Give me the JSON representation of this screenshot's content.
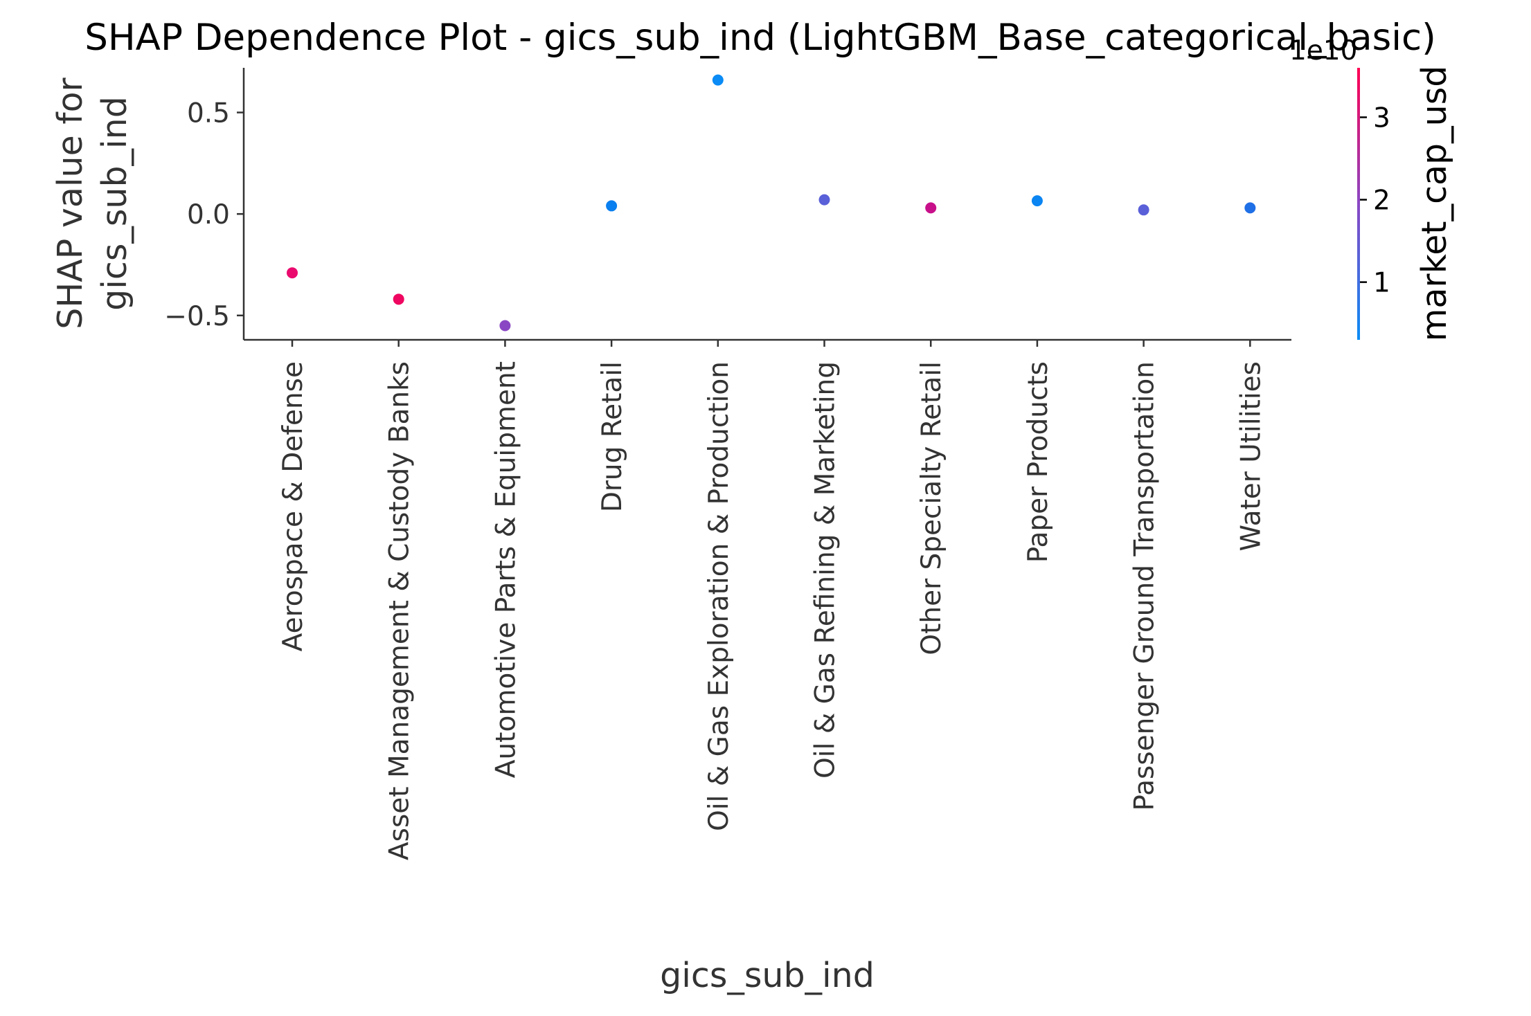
{
  "chart_data": {
    "type": "scatter",
    "title": "SHAP Dependence Plot - gics_sub_ind (LightGBM_Base_categorical_basic)",
    "xlabel": "gics_sub_ind",
    "ylabel_lines": [
      "SHAP value for",
      "gics_sub_ind"
    ],
    "categories": [
      "Aerospace & Defense",
      "Asset Management & Custody Banks",
      "Automotive Parts & Equipment",
      "Drug Retail",
      "Oil & Gas Exploration & Production",
      "Oil & Gas Refining & Marketing",
      "Other Specialty Retail",
      "Paper Products",
      "Passenger Ground Transportation",
      "Water Utilities"
    ],
    "ylim": [
      -0.62,
      0.72
    ],
    "yticks": [
      -0.5,
      0.0,
      0.5
    ],
    "ytick_labels": [
      "−0.5",
      "0.0",
      "0.5"
    ],
    "points": [
      {
        "x": "Aerospace & Defense",
        "y": -0.29,
        "color": "#ea0a6e"
      },
      {
        "x": "Asset Management & Custody Banks",
        "y": -0.42,
        "color": "#ef0660"
      },
      {
        "x": "Automotive Parts & Equipment",
        "y": -0.55,
        "color": "#8a47c4"
      },
      {
        "x": "Drug Retail",
        "y": 0.04,
        "color": "#0a7fef"
      },
      {
        "x": "Oil & Gas Exploration & Production",
        "y": 0.66,
        "color": "#0a8bf5"
      },
      {
        "x": "Oil & Gas Refining & Marketing",
        "y": 0.07,
        "color": "#5a60d8"
      },
      {
        "x": "Other Specialty Retail",
        "y": 0.03,
        "color": "#c8108a"
      },
      {
        "x": "Paper Products",
        "y": 0.065,
        "color": "#0a85f2"
      },
      {
        "x": "Passenger Ground Transportation",
        "y": 0.02,
        "color": "#5a60d8"
      },
      {
        "x": "Water Utilities",
        "y": 0.03,
        "color": "#1f6fe6"
      }
    ],
    "colorbar": {
      "label": "market_cap_usd",
      "offset_text": "1e10",
      "range": [
        0.3,
        3.6
      ],
      "ticks": [
        1,
        2,
        3
      ],
      "tick_labels": [
        "1",
        "2",
        "3"
      ],
      "color_low": "#0a8cf5",
      "color_high": "#ff0052"
    }
  }
}
